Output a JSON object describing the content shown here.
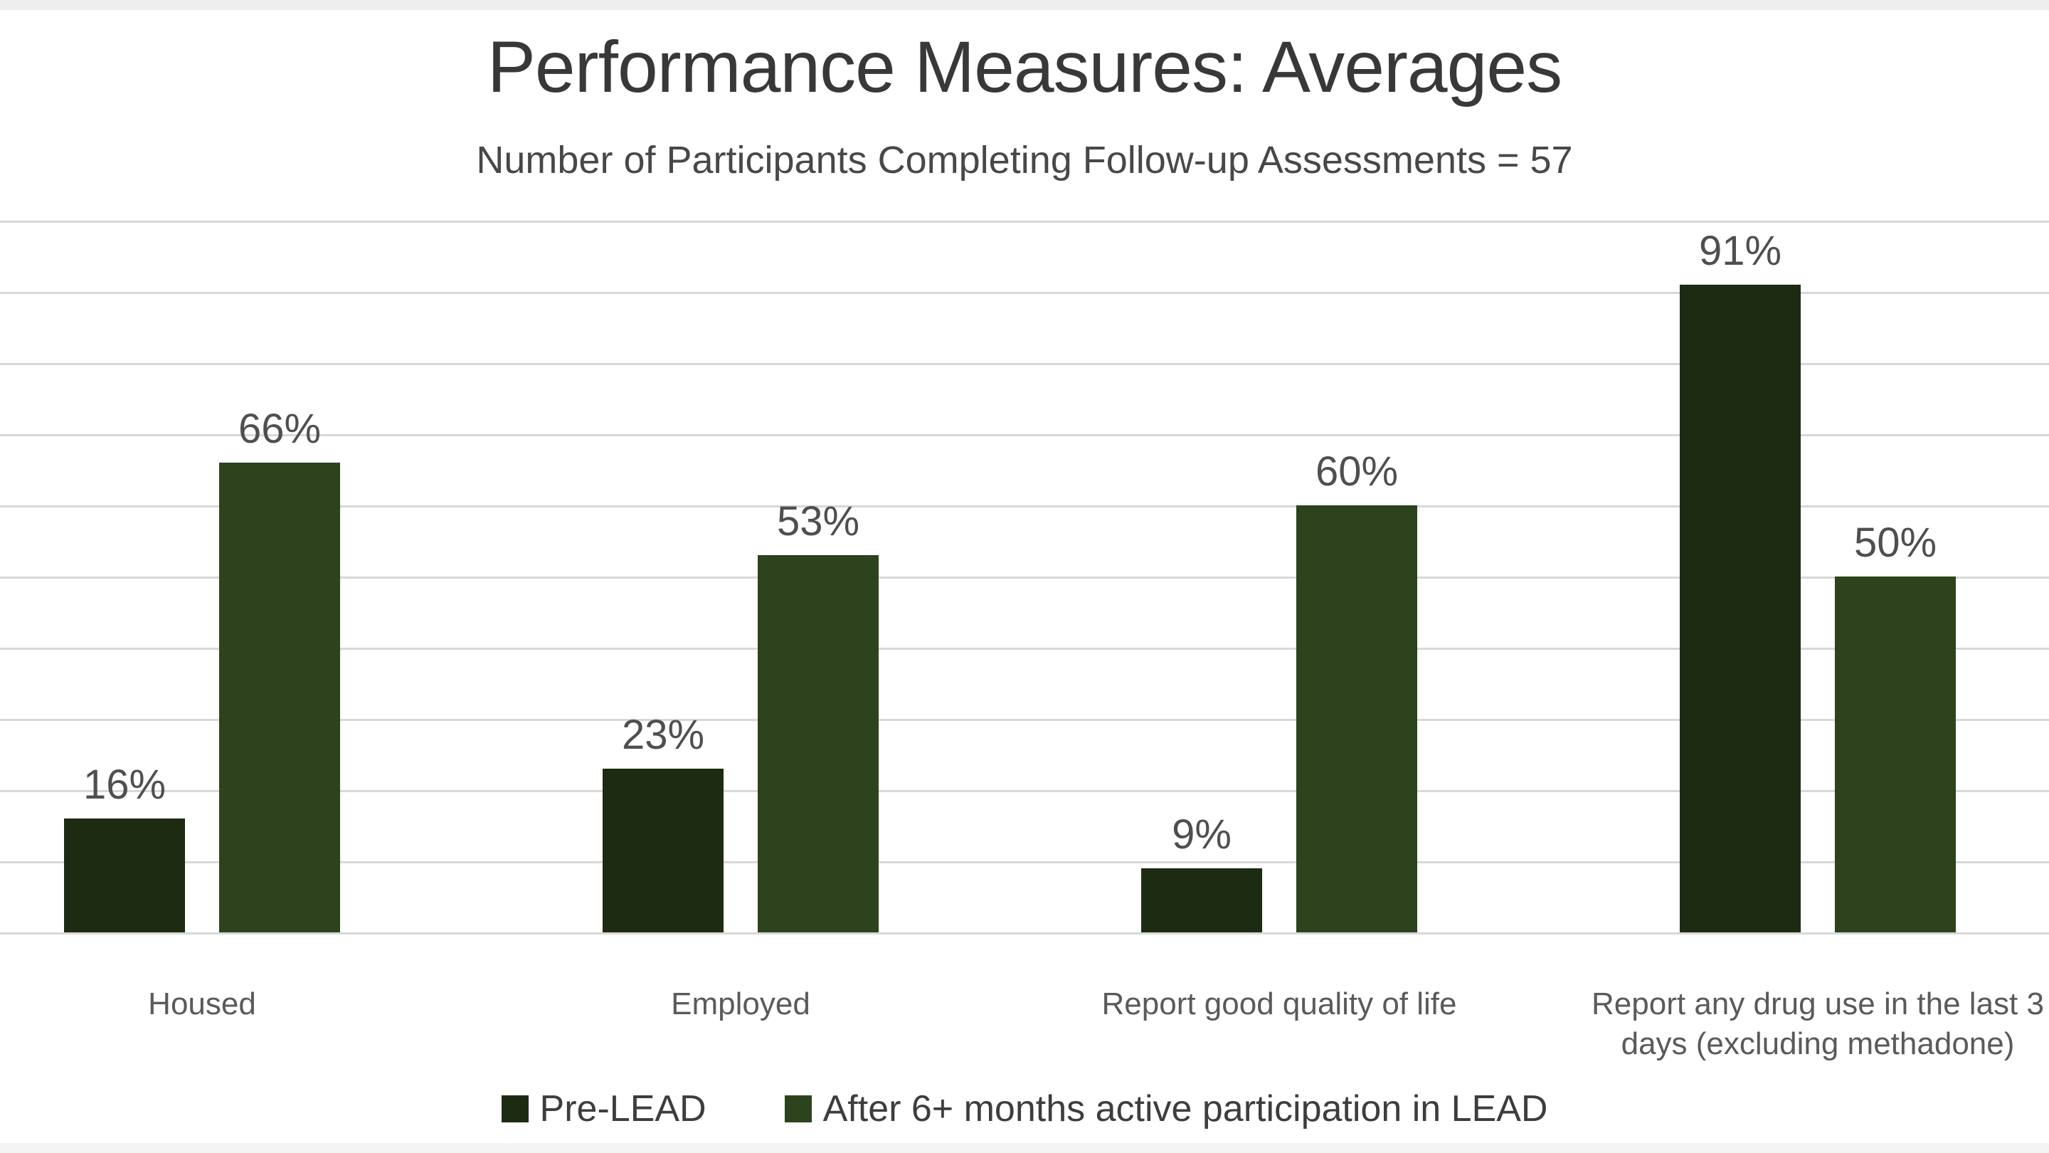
{
  "page": {
    "title": "Performance Measures: Averages",
    "subtitle": "Number of Participants Completing Follow-up Assessments = 57"
  },
  "chart_data": {
    "type": "bar",
    "title": "Performance Measures: Averages",
    "subtitle": "Number of Participants Completing Follow-up Assessments = 57",
    "categories": [
      "Housed",
      "Employed",
      "Report good quality of life",
      "Report any drug use in the last 3 days (excluding methadone)"
    ],
    "category_display_lines": [
      [
        "Housed"
      ],
      [
        "Employed"
      ],
      [
        "Report good quality of life"
      ],
      [
        "Report any drug use in the last 3",
        "days (excluding methadone)"
      ]
    ],
    "series": [
      {
        "name": "Pre-LEAD",
        "color": "#1d2b12",
        "values": [
          16,
          23,
          9,
          91
        ]
      },
      {
        "name": "After 6+ months active participation in LEAD",
        "color": "#2c431d",
        "values": [
          66,
          53,
          60,
          50
        ]
      }
    ],
    "data_labels": [
      [
        "16%",
        "23%",
        "9%",
        "91%"
      ],
      [
        "66%",
        "53%",
        "60%",
        "50%"
      ]
    ],
    "value_suffix": "%",
    "xlabel": "",
    "ylabel": "",
    "ylim": [
      0,
      100
    ],
    "gridline_step": 10,
    "grid": "horizontal",
    "gridline_color": "#d8d8d8",
    "legend_position": "bottom",
    "note": "rightmost category label clipped at image edge"
  }
}
